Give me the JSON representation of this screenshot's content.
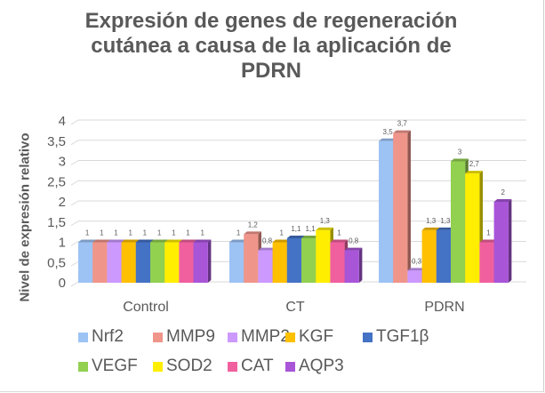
{
  "chart_data": {
    "type": "bar",
    "title": "Expresión de genes de regeneración cutánea a causa de la aplicación de PDRN",
    "title_lines": [
      "Expresión de genes de regeneración",
      "cutánea a causa de la aplicación de",
      "PDRN"
    ],
    "xlabel": "",
    "ylabel": "Nivel de expresión relativo",
    "ylim": [
      0,
      4
    ],
    "yticks": [
      "0",
      "0,5",
      "1",
      "1,5",
      "2",
      "2,5",
      "3",
      "3,5",
      "4"
    ],
    "ytick_values": [
      0,
      0.5,
      1,
      1.5,
      2,
      2.5,
      3,
      3.5,
      4
    ],
    "grid": true,
    "style": "3d-column",
    "legend_position": "bottom",
    "categories": [
      "Control",
      "CT",
      "PDRN"
    ],
    "series": [
      {
        "name": "Nrf2",
        "color": "#9dc3f5",
        "values": [
          1,
          1,
          3.5
        ],
        "labels": [
          "1",
          "1",
          "3,5"
        ]
      },
      {
        "name": "MMP9",
        "color": "#f0958a",
        "values": [
          1,
          1.2,
          3.7
        ],
        "labels": [
          "1",
          "1,2",
          "3,7"
        ]
      },
      {
        "name": "MMP2",
        "color": "#cc99ff",
        "values": [
          1,
          0.8,
          0.3
        ],
        "labels": [
          "1",
          "0,8",
          "0,3"
        ]
      },
      {
        "name": "KGF",
        "color": "#ffc000",
        "values": [
          1,
          1,
          1.3
        ],
        "labels": [
          "1",
          "1",
          "1,3"
        ]
      },
      {
        "name": "TGF1β",
        "color": "#4472c4",
        "values": [
          1,
          1.1,
          1.3
        ],
        "labels": [
          "1",
          "1,1",
          "1,3"
        ]
      },
      {
        "name": "VEGF",
        "color": "#92d050",
        "values": [
          1,
          1.1,
          3
        ],
        "labels": [
          "1",
          "1,1",
          "3"
        ]
      },
      {
        "name": "SOD2",
        "color": "#ffee00",
        "values": [
          1,
          1.3,
          2.7
        ],
        "labels": [
          "1",
          "1,3",
          "2,7"
        ]
      },
      {
        "name": "CAT",
        "color": "#f0609e",
        "values": [
          1,
          1,
          1
        ],
        "labels": [
          "1",
          "1",
          "1"
        ]
      },
      {
        "name": "AQP3",
        "color": "#a855d8",
        "values": [
          1,
          0.8,
          2
        ],
        "labels": [
          "1",
          "0,8",
          "2"
        ]
      }
    ]
  }
}
